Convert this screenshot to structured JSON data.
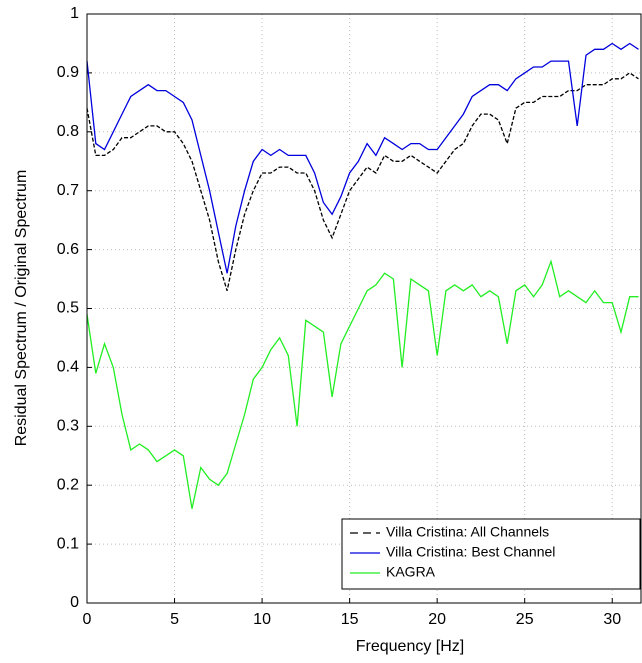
{
  "chart_data": {
    "type": "line",
    "xlabel": "Frequency [Hz]",
    "ylabel": "Residual Spectrum / Original Spectrum",
    "x": [
      0,
      0.5,
      1,
      1.5,
      2,
      2.5,
      3,
      3.5,
      4,
      4.5,
      5,
      5.5,
      6,
      6.5,
      7,
      7.5,
      8,
      8.5,
      9,
      9.5,
      10,
      10.5,
      11,
      11.5,
      12,
      12.5,
      13,
      13.5,
      14,
      14.5,
      15,
      15.5,
      16,
      16.5,
      17,
      17.5,
      18,
      18.5,
      19,
      19.5,
      20,
      20.5,
      21,
      21.5,
      22,
      22.5,
      23,
      23.5,
      24,
      24.5,
      25,
      25.5,
      26,
      26.5,
      27,
      27.5,
      28,
      28.5,
      29,
      29.5,
      30,
      30.5,
      31,
      31.5
    ],
    "series": [
      {
        "name": "Villa Cristina: All Channels",
        "color": "#000000",
        "dash": true,
        "values": [
          0.84,
          0.76,
          0.76,
          0.77,
          0.79,
          0.79,
          0.8,
          0.81,
          0.81,
          0.8,
          0.8,
          0.78,
          0.75,
          0.7,
          0.65,
          0.58,
          0.53,
          0.6,
          0.66,
          0.7,
          0.73,
          0.73,
          0.74,
          0.74,
          0.73,
          0.73,
          0.7,
          0.65,
          0.62,
          0.66,
          0.7,
          0.72,
          0.74,
          0.73,
          0.76,
          0.75,
          0.75,
          0.76,
          0.75,
          0.74,
          0.73,
          0.75,
          0.77,
          0.78,
          0.81,
          0.83,
          0.83,
          0.82,
          0.78,
          0.84,
          0.85,
          0.85,
          0.86,
          0.86,
          0.86,
          0.87,
          0.87,
          0.88,
          0.88,
          0.88,
          0.89,
          0.89,
          0.9,
          0.89
        ]
      },
      {
        "name": "Villa Cristina: Best Channel",
        "color": "#0000dd",
        "dash": false,
        "values": [
          0.92,
          0.78,
          0.77,
          0.8,
          0.83,
          0.86,
          0.87,
          0.88,
          0.87,
          0.87,
          0.86,
          0.85,
          0.82,
          0.76,
          0.7,
          0.63,
          0.56,
          0.64,
          0.7,
          0.75,
          0.77,
          0.76,
          0.77,
          0.76,
          0.76,
          0.76,
          0.73,
          0.68,
          0.66,
          0.69,
          0.73,
          0.75,
          0.78,
          0.76,
          0.79,
          0.78,
          0.77,
          0.78,
          0.78,
          0.77,
          0.77,
          0.79,
          0.81,
          0.83,
          0.86,
          0.87,
          0.88,
          0.88,
          0.87,
          0.89,
          0.9,
          0.91,
          0.91,
          0.92,
          0.92,
          0.92,
          0.81,
          0.93,
          0.94,
          0.94,
          0.95,
          0.94,
          0.95,
          0.94
        ]
      },
      {
        "name": "KAGRA",
        "color": "#22ee22",
        "dash": false,
        "values": [
          0.49,
          0.39,
          0.44,
          0.4,
          0.32,
          0.26,
          0.27,
          0.26,
          0.24,
          0.25,
          0.26,
          0.25,
          0.16,
          0.23,
          0.21,
          0.2,
          0.22,
          0.27,
          0.32,
          0.38,
          0.4,
          0.43,
          0.45,
          0.42,
          0.3,
          0.48,
          0.47,
          0.46,
          0.35,
          0.44,
          0.47,
          0.5,
          0.53,
          0.54,
          0.56,
          0.55,
          0.4,
          0.55,
          0.54,
          0.53,
          0.42,
          0.53,
          0.54,
          0.53,
          0.54,
          0.52,
          0.53,
          0.52,
          0.44,
          0.53,
          0.54,
          0.52,
          0.54,
          0.58,
          0.52,
          0.53,
          0.52,
          0.51,
          0.53,
          0.51,
          0.51,
          0.46,
          0.52,
          0.52
        ]
      }
    ],
    "xlim": [
      0,
      31.7
    ],
    "ylim": [
      0,
      1
    ],
    "xticks": [
      0,
      5,
      10,
      15,
      20,
      25,
      30
    ],
    "yticks": [
      0,
      0.1,
      0.2,
      0.3,
      0.4,
      0.5,
      0.6,
      0.7,
      0.8,
      0.9,
      1
    ],
    "grid": true,
    "legend": "lower right"
  }
}
